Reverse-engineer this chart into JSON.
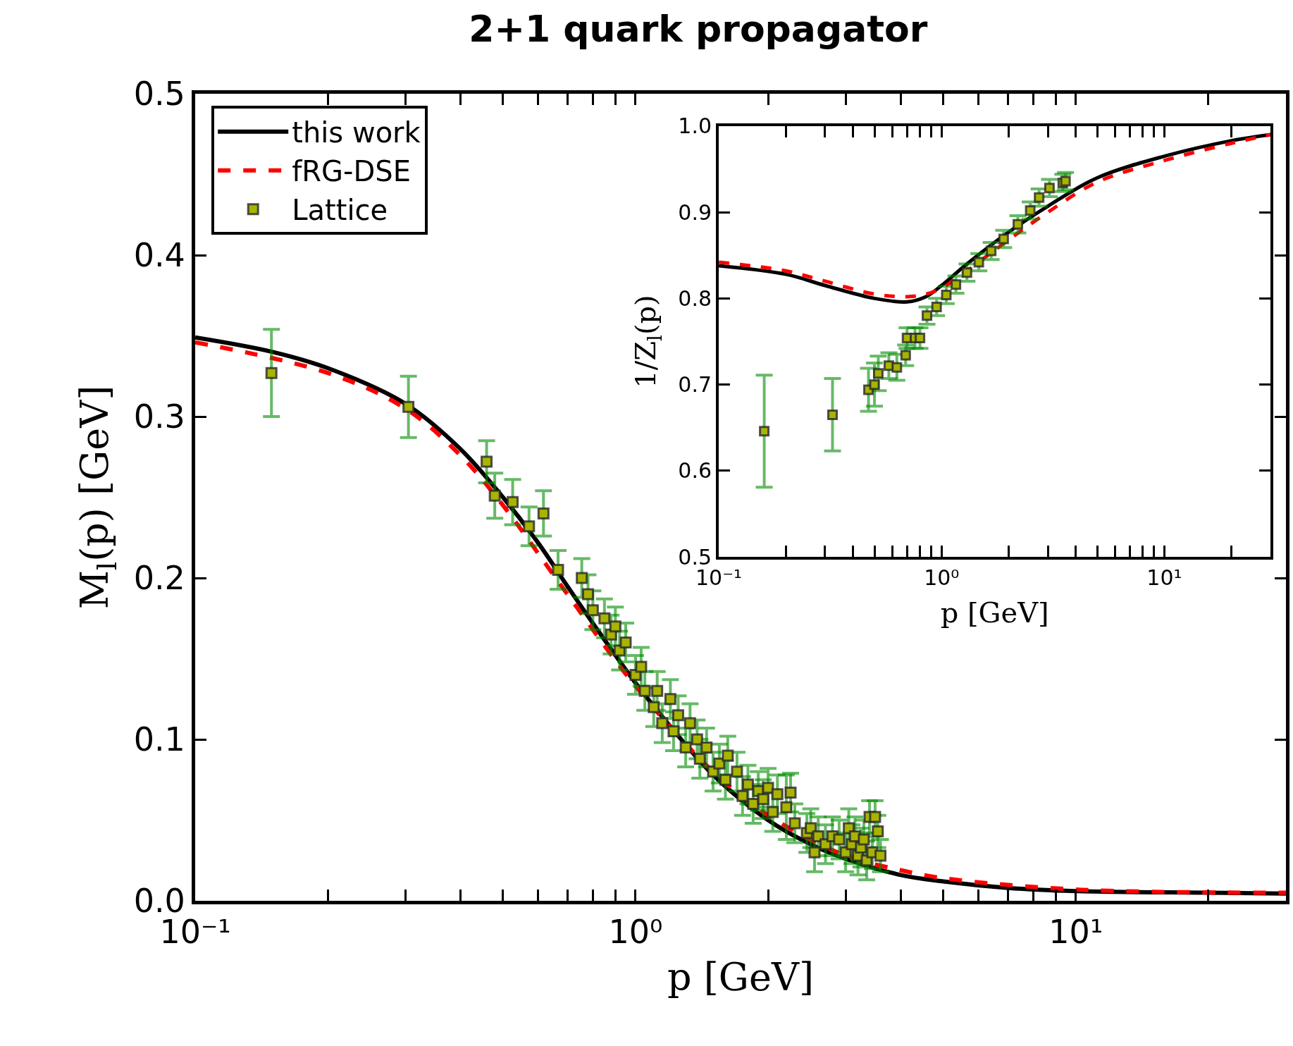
{
  "chart_data": [
    {
      "type": "line",
      "title": "2+1 quark propagator",
      "xlabel": "p [GeV]",
      "ylabel": "M$_{l}$(p) [GeV]",
      "log": "x",
      "legend": "top left",
      "xlim": [
        0.1,
        30
      ],
      "ylim": [
        0.0,
        0.5
      ],
      "xticks": [
        {
          "value": 0.1,
          "label": "10⁻¹"
        },
        {
          "value": 0.2,
          "label": null
        },
        {
          "value": 0.3,
          "label": null
        },
        {
          "value": 0.4,
          "label": null
        },
        {
          "value": 0.5,
          "label": null
        },
        {
          "value": 0.6,
          "label": null
        },
        {
          "value": 0.7,
          "label": null
        },
        {
          "value": 0.8,
          "label": null
        },
        {
          "value": 0.9,
          "label": null
        },
        {
          "value": 1,
          "label": "10⁰"
        },
        {
          "value": 2,
          "label": null
        },
        {
          "value": 3,
          "label": null
        },
        {
          "value": 4,
          "label": null
        },
        {
          "value": 5,
          "label": null
        },
        {
          "value": 6,
          "label": null
        },
        {
          "value": 7,
          "label": null
        },
        {
          "value": 8,
          "label": null
        },
        {
          "value": 9,
          "label": null
        },
        {
          "value": 10,
          "label": "10¹"
        },
        {
          "value": 20,
          "label": null
        },
        {
          "value": 30,
          "label": null
        }
      ],
      "yticks": [
        {
          "value": 0.0,
          "label": "0.0"
        },
        0.1,
        0.2,
        0.3,
        0.4,
        0.5
      ],
      "series": [
        {
          "name": "this work",
          "color": "#000000",
          "line_style": "solid",
          "x": [
            0.1,
            0.15,
            0.2,
            0.3,
            0.4,
            0.5,
            0.6,
            0.7,
            0.8,
            1.0,
            1.2,
            1.5,
            2,
            2.5,
            3,
            4,
            5,
            7,
            10,
            20,
            30
          ],
          "values": [
            0.349,
            0.34,
            0.33,
            0.308,
            0.28,
            0.25,
            0.222,
            0.195,
            0.172,
            0.135,
            0.108,
            0.078,
            0.05,
            0.035,
            0.026,
            0.016,
            0.012,
            0.008,
            0.006,
            0.005,
            0.0045
          ]
        },
        {
          "name": "fRG-DSE",
          "color": "#ff0000",
          "line_style": "dashed",
          "x": [
            0.1,
            0.2,
            0.3,
            0.4,
            0.5,
            0.7,
            1.0,
            1.5,
            2,
            3,
            4,
            5,
            10,
            30
          ],
          "values": [
            0.346,
            0.327,
            0.305,
            0.276,
            0.245,
            0.19,
            0.133,
            0.08,
            0.053,
            0.028,
            0.019,
            0.014,
            0.007,
            0.005
          ]
        },
        {
          "name": "Lattice",
          "type": "scatter",
          "marker": "square",
          "color": "#a8b400",
          "x": [
            0.149,
            0.305,
            0.459,
            0.479,
            0.526,
            0.573,
            0.618,
            0.667,
            0.755,
            0.78,
            0.8,
            0.85,
            0.88,
            0.9,
            0.92,
            0.95,
            1.0,
            1.03,
            1.05,
            1.1,
            1.12,
            1.15,
            1.2,
            1.22,
            1.25,
            1.3,
            1.33,
            1.38,
            1.4,
            1.45,
            1.5,
            1.55,
            1.6,
            1.62,
            1.7,
            1.75,
            1.8,
            1.85,
            1.9,
            1.95,
            2.0,
            2.05,
            2.1,
            2.2,
            2.25,
            2.3,
            2.45,
            2.5,
            2.55,
            2.6,
            2.7,
            2.8,
            2.9,
            3.0,
            3.05,
            3.1,
            3.15,
            3.2,
            3.25,
            3.3,
            3.35,
            3.4,
            3.45,
            3.5,
            3.55,
            3.6
          ],
          "values": [
            0.327,
            0.306,
            0.272,
            0.251,
            0.247,
            0.232,
            0.24,
            0.205,
            0.2,
            0.19,
            0.18,
            0.175,
            0.165,
            0.17,
            0.155,
            0.16,
            0.14,
            0.145,
            0.13,
            0.12,
            0.13,
            0.11,
            0.125,
            0.105,
            0.115,
            0.095,
            0.11,
            0.1,
            0.088,
            0.095,
            0.08,
            0.085,
            0.075,
            0.09,
            0.08,
            0.065,
            0.072,
            0.06,
            0.068,
            0.063,
            0.07,
            0.055,
            0.066,
            0.058,
            0.067,
            0.048,
            0.042,
            0.045,
            0.03,
            0.04,
            0.035,
            0.04,
            0.038,
            0.03,
            0.045,
            0.035,
            0.04,
            0.028,
            0.033,
            0.038,
            0.025,
            0.052,
            0.03,
            0.052,
            0.043,
            0.028
          ],
          "errors": [
            0.027,
            0.019,
            0.013,
            0.014,
            0.014,
            0.012,
            0.014,
            0.012,
            0.012,
            0.012,
            0.012,
            0.012,
            0.012,
            0.012,
            0.012,
            0.012,
            0.012,
            0.012,
            0.012,
            0.012,
            0.012,
            0.012,
            0.012,
            0.012,
            0.012,
            0.012,
            0.012,
            0.012,
            0.012,
            0.012,
            0.012,
            0.012,
            0.012,
            0.012,
            0.012,
            0.012,
            0.012,
            0.012,
            0.012,
            0.012,
            0.012,
            0.012,
            0.012,
            0.02,
            0.012,
            0.012,
            0.012,
            0.012,
            0.012,
            0.012,
            0.012,
            0.012,
            0.012,
            0.012,
            0.012,
            0.012,
            0.012,
            0.012,
            0.012,
            0.012,
            0.012,
            0.01,
            0.01,
            0.01,
            0.01,
            0.01
          ]
        }
      ]
    },
    {
      "type": "line",
      "xlabel": "p [GeV]",
      "ylabel": "1/Z$_{l}$(p)",
      "log": "x",
      "xlim": [
        0.1,
        30
      ],
      "ylim": [
        0.5,
        1.0
      ],
      "xticks": [
        {
          "value": 0.1,
          "label": "10⁻¹"
        },
        {
          "value": 0.2,
          "label": null
        },
        {
          "value": 0.3,
          "label": null
        },
        {
          "value": 0.4,
          "label": null
        },
        {
          "value": 0.5,
          "label": null
        },
        {
          "value": 0.6,
          "label": null
        },
        {
          "value": 0.7,
          "label": null
        },
        {
          "value": 0.8,
          "label": null
        },
        {
          "value": 0.9,
          "label": null
        },
        {
          "value": 1,
          "label": "10⁰"
        },
        {
          "value": 2,
          "label": null
        },
        {
          "value": 3,
          "label": null
        },
        {
          "value": 4,
          "label": null
        },
        {
          "value": 5,
          "label": null
        },
        {
          "value": 6,
          "label": null
        },
        {
          "value": 7,
          "label": null
        },
        {
          "value": 8,
          "label": null
        },
        {
          "value": 9,
          "label": null
        },
        {
          "value": 10,
          "label": "10¹"
        },
        {
          "value": 20,
          "label": null
        },
        {
          "value": 30,
          "label": null
        }
      ],
      "yticks": [
        0.5,
        0.6,
        0.7,
        0.8,
        0.9,
        {
          "value": 1.0,
          "label": "1.0"
        }
      ],
      "series": [
        {
          "color": "#000000",
          "line_style": "solid",
          "x": [
            0.1,
            0.2,
            0.3,
            0.5,
            0.7,
            0.85,
            1.0,
            1.3,
            2,
            3,
            5,
            10,
            20,
            30
          ],
          "values": [
            0.838,
            0.828,
            0.815,
            0.8,
            0.796,
            0.802,
            0.815,
            0.84,
            0.877,
            0.907,
            0.94,
            0.965,
            0.983,
            0.99
          ]
        },
        {
          "color": "#ff0000",
          "line_style": "dashed",
          "x": [
            0.1,
            0.2,
            0.3,
            0.5,
            0.7,
            0.85,
            1.0,
            1.3,
            2,
            3,
            5,
            10,
            20,
            30
          ],
          "values": [
            0.842,
            0.832,
            0.82,
            0.805,
            0.802,
            0.805,
            0.812,
            0.832,
            0.868,
            0.9,
            0.935,
            0.96,
            0.98,
            0.99
          ]
        },
        {
          "type": "scatter",
          "marker": "square",
          "color": "#a8b400",
          "x": [
            0.16,
            0.324,
            0.47,
            0.5,
            0.52,
            0.58,
            0.63,
            0.69,
            0.7,
            0.76,
            0.8,
            0.86,
            0.95,
            1.05,
            1.16,
            1.3,
            1.47,
            1.67,
            1.9,
            2.2,
            2.5,
            2.74,
            3.05,
            3.5,
            3.6
          ],
          "values": [
            0.646,
            0.665,
            0.694,
            0.7,
            0.713,
            0.722,
            0.72,
            0.734,
            0.754,
            0.754,
            0.754,
            0.78,
            0.79,
            0.804,
            0.816,
            0.83,
            0.842,
            0.855,
            0.869,
            0.886,
            0.902,
            0.917,
            0.928,
            0.934,
            0.936
          ],
          "errors": [
            0.065,
            0.042,
            0.025,
            0.025,
            0.02,
            0.015,
            0.015,
            0.012,
            0.012,
            0.012,
            0.012,
            0.01,
            0.01,
            0.01,
            0.01,
            0.01,
            0.01,
            0.01,
            0.01,
            0.01,
            0.01,
            0.01,
            0.01,
            0.01,
            0.01
          ]
        }
      ]
    }
  ]
}
